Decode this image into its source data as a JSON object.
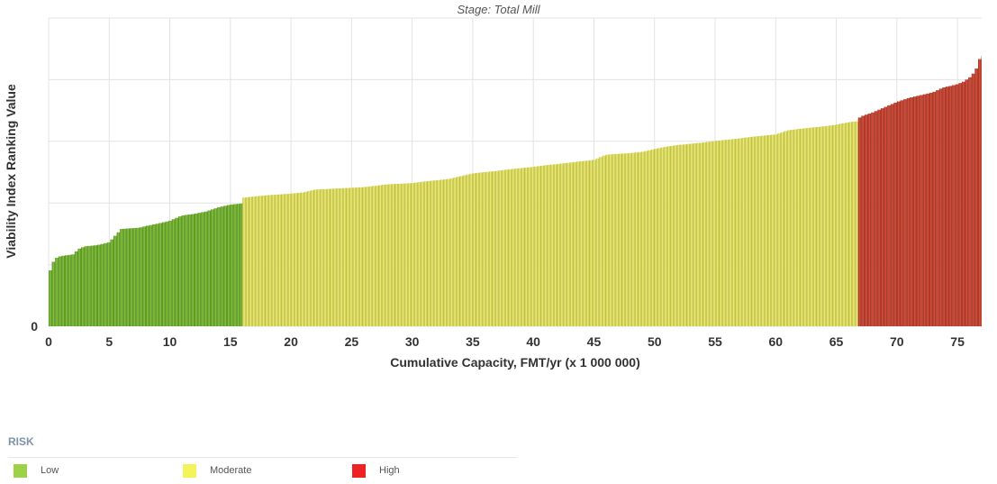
{
  "chart_data": {
    "type": "bar",
    "title": "",
    "subtitle": "Stage: Total Mill",
    "xlabel": "Cumulative Capacity, FMT/yr (x 1 000 000)",
    "ylabel": "Viability Index Ranking Value",
    "xlim": [
      0,
      77
    ],
    "xticks": [
      0,
      5,
      10,
      15,
      20,
      25,
      30,
      35,
      40,
      45,
      50,
      55,
      60,
      65,
      70,
      75
    ],
    "yticks": [
      0
    ],
    "grid": true,
    "legend_position": "bottom-left",
    "series": [
      {
        "name": "Low",
        "color": "#5f9e2a",
        "x": [
          0.0,
          0.5,
          1.0,
          2.0,
          2.5,
          3.0,
          4.0,
          5.0,
          6.0,
          7.5,
          8.0,
          9.0,
          10.0,
          11.0,
          12.0,
          13.0,
          14.0,
          15.0,
          16.0
        ],
        "y": [
          12.7,
          16.7,
          17.3,
          17.7,
          19.1,
          19.7,
          20.0,
          20.7,
          24.0,
          24.3,
          24.7,
          25.3,
          26.0,
          27.3,
          27.7,
          28.3,
          29.3,
          30.0,
          30.3
        ]
      },
      {
        "name": "Moderate",
        "color": "#dede6a",
        "x": [
          16.0,
          17.0,
          18.0,
          20.0,
          21.0,
          22.0,
          24.0,
          26.0,
          28.0,
          30.0,
          31.0,
          33.0,
          35.0,
          36.0,
          37.0,
          38.0,
          40.0,
          41.0,
          42.0,
          44.0,
          45.0,
          46.0,
          48.0,
          49.0,
          50.0,
          51.0,
          52.0,
          53.0,
          54.0,
          55.0,
          56.0,
          57.0,
          58.0,
          59.0,
          60.0,
          61.0,
          62.0,
          63.0,
          64.0,
          65.0,
          66.0,
          66.8
        ],
        "y": [
          31.7,
          32.0,
          32.3,
          32.7,
          33.0,
          33.7,
          34.0,
          34.3,
          35.0,
          35.3,
          35.7,
          36.3,
          37.7,
          38.0,
          38.3,
          38.7,
          39.3,
          39.7,
          40.0,
          40.7,
          41.0,
          42.3,
          42.7,
          43.0,
          43.7,
          44.3,
          44.7,
          45.0,
          45.3,
          45.7,
          46.0,
          46.3,
          46.7,
          47.0,
          47.3,
          48.3,
          48.7,
          49.0,
          49.3,
          49.7,
          50.3,
          50.6
        ]
      },
      {
        "name": "High",
        "color": "#c0392b",
        "x": [
          66.8,
          67.0,
          68.0,
          69.0,
          70.0,
          71.0,
          72.0,
          73.0,
          73.7,
          74.0,
          74.5,
          75.0,
          75.5,
          76.0,
          76.3,
          76.6,
          76.8,
          77.0
        ],
        "y": [
          51.0,
          51.7,
          52.7,
          54.0,
          55.3,
          56.3,
          57.0,
          57.7,
          58.7,
          59.0,
          59.3,
          59.7,
          60.3,
          61.3,
          62.3,
          63.7,
          65.7,
          66.7
        ]
      }
    ]
  },
  "legend": {
    "title": "RISK",
    "items": [
      {
        "label": "Low",
        "color": "#9bd248"
      },
      {
        "label": "Moderate",
        "color": "#f4f45a"
      },
      {
        "label": "High",
        "color": "#ee2222"
      }
    ]
  }
}
